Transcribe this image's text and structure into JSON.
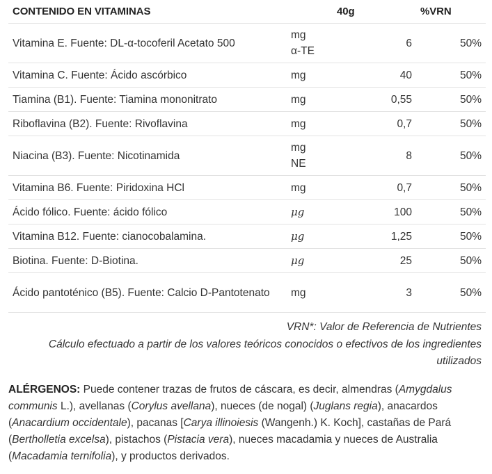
{
  "table": {
    "header": {
      "name": "CONTENIDO EN VITAMINAS",
      "unit": "",
      "amount": "40g",
      "vrn": "%VRN"
    },
    "rows": [
      {
        "name": "Vitamina E. Fuente: DL-α-tocoferil Acetato 500",
        "unit_line1": "mg",
        "unit_line2": "α-TE",
        "amount": "6",
        "vrn": "50%"
      },
      {
        "name": "Vitamina C. Fuente: Ácido ascórbico",
        "unit_line1": "mg",
        "unit_line2": "",
        "amount": "40",
        "vrn": "50%"
      },
      {
        "name": "Tiamina (B1). Fuente: Tiamina mononitrato",
        "unit_line1": "mg",
        "unit_line2": "",
        "amount": "0,55",
        "vrn": "50%"
      },
      {
        "name": "Riboflavina (B2). Fuente: Rivoflavina",
        "unit_line1": "mg",
        "unit_line2": "",
        "amount": "0,7",
        "vrn": "50%"
      },
      {
        "name": "Niacina (B3). Fuente: Nicotinamida",
        "unit_line1": "mg",
        "unit_line2": "NE",
        "amount": "8",
        "vrn": "50%"
      },
      {
        "name": "Vitamina B6. Fuente: Piridoxina HCl",
        "unit_line1": "mg",
        "unit_line2": "",
        "amount": "0,7",
        "vrn": "50%"
      },
      {
        "name": "Ácido fólico. Fuente: ácido fólico",
        "unit_line1": "μg",
        "unit_line2": "",
        "amount": "100",
        "vrn": "50%"
      },
      {
        "name": "Vitamina B12. Fuente: cianocobalamina.",
        "unit_line1": "μg",
        "unit_line2": "",
        "amount": "1,25",
        "vrn": "50%"
      },
      {
        "name": "Biotina. Fuente: D-Biotina.",
        "unit_line1": "μg",
        "unit_line2": "",
        "amount": "25",
        "vrn": "50%"
      },
      {
        "name": "Ácido pantoténico (B5). Fuente: Calcio D-Pantotenato",
        "unit_line1": "mg",
        "unit_line2": "",
        "amount": "3",
        "vrn": "50%"
      }
    ]
  },
  "notes": {
    "line1": "VRN*: Valor de Referencia de Nutrientes",
    "line2": "Cálculo efectuado a partir de los valores teóricos conocidos o efectivos de los ingredientes utilizados"
  },
  "allergens": {
    "label": "ALÉRGENOS:",
    "t1": " Puede contener trazas de frutos de cáscara, es decir, almendras (",
    "i1": "Amygdalus communis",
    "t2": " L.), avellanas (",
    "i2": "Corylus avellana",
    "t3": "), nueces (de nogal) (",
    "i3": "Juglans regia",
    "t4": "), anacardos (",
    "i4": "Anacardium occidentale",
    "t5": "), pacanas [",
    "i5": "Carya illinoiesis",
    "t6": " (Wangenh.) K. Koch], castañas de Pará (",
    "i6": "Bertholletia excelsa",
    "t7": "), pistachos (",
    "i7": "Pistacia vera",
    "t8": "), nueces macadamia y nueces de Australia (",
    "i8": "Macadamia ternifolia",
    "t9": "), y productos derivados."
  }
}
